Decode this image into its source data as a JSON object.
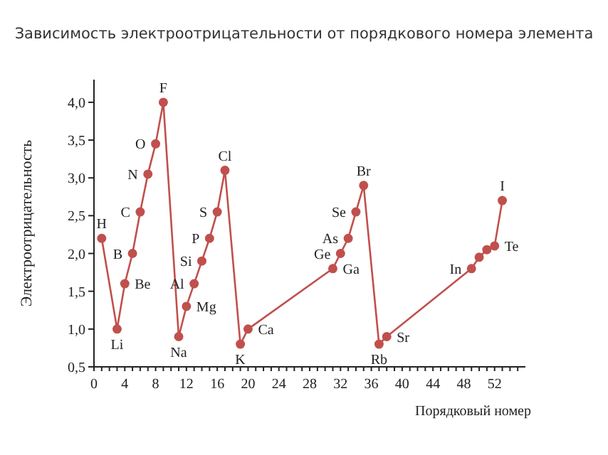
{
  "chart_data": {
    "type": "line",
    "title": "Зависимость электроотрицательности от порядкового номера элемента",
    "xlabel": "Порядковый номер",
    "ylabel": "Электроотрицательность",
    "x": [
      1,
      3,
      4,
      5,
      6,
      7,
      8,
      9,
      11,
      12,
      13,
      14,
      15,
      16,
      17,
      19,
      20,
      31,
      32,
      33,
      34,
      35,
      37,
      38,
      49,
      50,
      51,
      52,
      53
    ],
    "series": [
      {
        "color": "#c0504d",
        "values": [
          2.2,
          1.0,
          1.6,
          2.0,
          2.55,
          3.05,
          3.45,
          4.0,
          0.9,
          1.3,
          1.6,
          1.9,
          2.2,
          2.55,
          3.1,
          0.8,
          1.0,
          1.8,
          2.0,
          2.2,
          2.55,
          2.9,
          0.8,
          0.9,
          1.8,
          1.95,
          2.05,
          2.1,
          2.7
        ]
      }
    ],
    "marker": "circle",
    "line_style": "solid",
    "grid": false,
    "legend": false,
    "xlim": [
      0,
      56
    ],
    "xticks": [
      0,
      {
        "value": 1,
        "label": null
      },
      {
        "value": 2,
        "label": null
      },
      {
        "value": 3,
        "label": null
      },
      4,
      {
        "value": 5,
        "label": null
      },
      {
        "value": 6,
        "label": null
      },
      {
        "value": 7,
        "label": null
      },
      8,
      {
        "value": 9,
        "label": null
      },
      {
        "value": 10,
        "label": null
      },
      {
        "value": 11,
        "label": null
      },
      12,
      {
        "value": 13,
        "label": null
      },
      {
        "value": 14,
        "label": null
      },
      {
        "value": 15,
        "label": null
      },
      16,
      {
        "value": 17,
        "label": null
      },
      {
        "value": 18,
        "label": null
      },
      {
        "value": 19,
        "label": null
      },
      20,
      {
        "value": 21,
        "label": null
      },
      {
        "value": 22,
        "label": null
      },
      {
        "value": 23,
        "label": null
      },
      24,
      {
        "value": 25,
        "label": null
      },
      {
        "value": 26,
        "label": null
      },
      {
        "value": 27,
        "label": null
      },
      28,
      {
        "value": 29,
        "label": null
      },
      {
        "value": 30,
        "label": null
      },
      {
        "value": 31,
        "label": null
      },
      32,
      {
        "value": 33,
        "label": null
      },
      {
        "value": 34,
        "label": null
      },
      {
        "value": 35,
        "label": null
      },
      36,
      {
        "value": 37,
        "label": null
      },
      {
        "value": 38,
        "label": null
      },
      {
        "value": 39,
        "label": null
      },
      40,
      {
        "value": 41,
        "label": null
      },
      {
        "value": 42,
        "label": null
      },
      {
        "value": 43,
        "label": null
      },
      44,
      {
        "value": 45,
        "label": null
      },
      {
        "value": 46,
        "label": null
      },
      {
        "value": 47,
        "label": null
      },
      48,
      {
        "value": 49,
        "label": null
      },
      {
        "value": 50,
        "label": null
      },
      {
        "value": 51,
        "label": null
      },
      52,
      {
        "value": 53,
        "label": null
      },
      {
        "value": 54,
        "label": null
      },
      {
        "value": 55,
        "label": null
      }
    ],
    "ylim": [
      0.5,
      4.3
    ],
    "yticks": [
      {
        "value": 0.5,
        "label": "0,5"
      },
      {
        "value": 1,
        "label": "1,0"
      },
      {
        "value": 1.5,
        "label": "1,5"
      },
      {
        "value": 2,
        "label": "2,0"
      },
      {
        "value": 2.5,
        "label": "2,5"
      },
      {
        "value": 3,
        "label": "3,0"
      },
      {
        "value": 3.5,
        "label": "3,5"
      },
      {
        "value": 4,
        "label": "4,0"
      }
    ],
    "annotations": [
      {
        "text": "H",
        "x": 1,
        "y": 2.2
      },
      {
        "text": "Li",
        "x": 3,
        "y": 1.0
      },
      {
        "text": "Be",
        "x": 4,
        "y": 1.6
      },
      {
        "text": "B",
        "x": 5,
        "y": 2.0
      },
      {
        "text": "C",
        "x": 6,
        "y": 2.55
      },
      {
        "text": "N",
        "x": 7,
        "y": 3.05
      },
      {
        "text": "O",
        "x": 8,
        "y": 3.45
      },
      {
        "text": "F",
        "x": 9,
        "y": 4.0
      },
      {
        "text": "Na",
        "x": 11,
        "y": 0.9
      },
      {
        "text": "Mg",
        "x": 12,
        "y": 1.3
      },
      {
        "text": "Al",
        "x": 13,
        "y": 1.6
      },
      {
        "text": "Si",
        "x": 14,
        "y": 1.9
      },
      {
        "text": "P",
        "x": 15,
        "y": 2.2
      },
      {
        "text": "S",
        "x": 16,
        "y": 2.55
      },
      {
        "text": "Cl",
        "x": 17,
        "y": 3.1
      },
      {
        "text": "K",
        "x": 19,
        "y": 0.8
      },
      {
        "text": "Ca",
        "x": 20,
        "y": 1.0
      },
      {
        "text": "Ga",
        "x": 31,
        "y": 1.8
      },
      {
        "text": "Ge",
        "x": 32,
        "y": 2.0
      },
      {
        "text": "As",
        "x": 33,
        "y": 2.2
      },
      {
        "text": "Se",
        "x": 34,
        "y": 2.55
      },
      {
        "text": "Br",
        "x": 35,
        "y": 2.9
      },
      {
        "text": "Rb",
        "x": 37,
        "y": 0.8
      },
      {
        "text": "Sr",
        "x": 38,
        "y": 0.9
      },
      {
        "text": "In",
        "x": 49,
        "y": 1.8
      },
      {
        "text": "Te",
        "x": 52,
        "y": 2.1
      },
      {
        "text": "I",
        "x": 53,
        "y": 2.7
      }
    ]
  }
}
